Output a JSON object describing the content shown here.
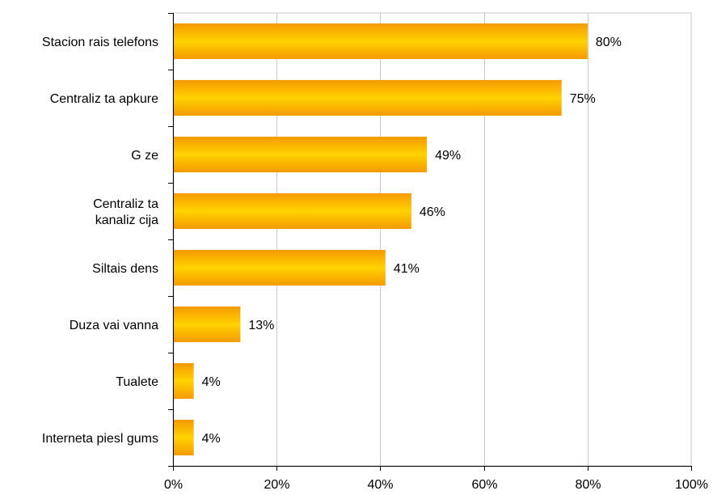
{
  "chart_data": {
    "type": "bar",
    "orientation": "horizontal",
    "categories": [
      [
        "Stacion  rais telefons"
      ],
      [
        "Centraliz  ta apkure"
      ],
      [
        "G  ze"
      ],
      [
        "Centraliz  ta",
        "kanaliz  cija"
      ],
      [
        "Siltais   dens"
      ],
      [
        "Duza vai vanna"
      ],
      [
        "Tualete"
      ],
      [
        "Interneta piesl  gums"
      ]
    ],
    "values": [
      80,
      75,
      49,
      46,
      41,
      13,
      4,
      4
    ],
    "value_labels": [
      "80%",
      "75%",
      "49%",
      "46%",
      "41%",
      "13%",
      "4%",
      "4%"
    ],
    "xlim": [
      0,
      100
    ],
    "x_ticks": [
      0,
      20,
      40,
      60,
      80,
      100
    ],
    "x_tick_labels": [
      "0%",
      "20%",
      "40%",
      "60%",
      "80%",
      "100%"
    ],
    "grid": "vertical",
    "legend": "none",
    "colors": {
      "bar_edge": "#f59a00",
      "bar_center": "#ffd200",
      "grid": "#c8c8c8",
      "axis": "#000000"
    }
  }
}
